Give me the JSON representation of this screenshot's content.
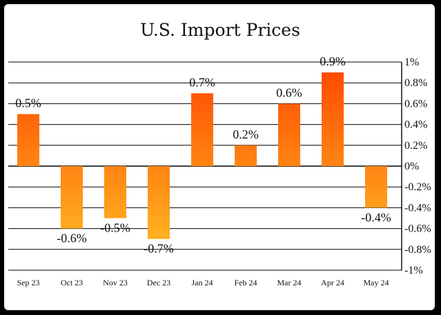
{
  "chart_data": {
    "type": "bar",
    "title": "U.S. Import Prices",
    "xlabel": "",
    "ylabel": "",
    "categories": [
      "Sep 23",
      "Oct 23",
      "Nov 23",
      "Dec 23",
      "Jan 24",
      "Feb 24",
      "Mar 24",
      "Apr 24",
      "May 24"
    ],
    "values": [
      0.5,
      -0.6,
      -0.5,
      -0.7,
      0.7,
      0.2,
      0.6,
      0.9,
      -0.4
    ],
    "data_labels": [
      "0.5%",
      "-0.6%",
      "-0.5%",
      "-0.7%",
      "0.7%",
      "0.2%",
      "0.6%",
      "0.9%",
      "-0.4%"
    ],
    "ylim": [
      -1,
      1
    ],
    "yticks": [
      1,
      0.8,
      0.6,
      0.4,
      0.2,
      0,
      -0.2,
      -0.4,
      -0.6,
      -0.8,
      -1
    ],
    "ytick_labels": [
      "1%",
      "0.8%",
      "0.6%",
      "0.4%",
      "0.2%",
      "0%",
      "-0.2%",
      "-0.4%",
      "-0.6%",
      "-0.8%",
      "-1%"
    ],
    "y_axis_side": "right",
    "grid": true,
    "legend": "none",
    "colors": {
      "bar_top": "#ff4500",
      "bar_bottom": "#ffc425",
      "frame": "#000000",
      "gridline": "#000000"
    }
  }
}
